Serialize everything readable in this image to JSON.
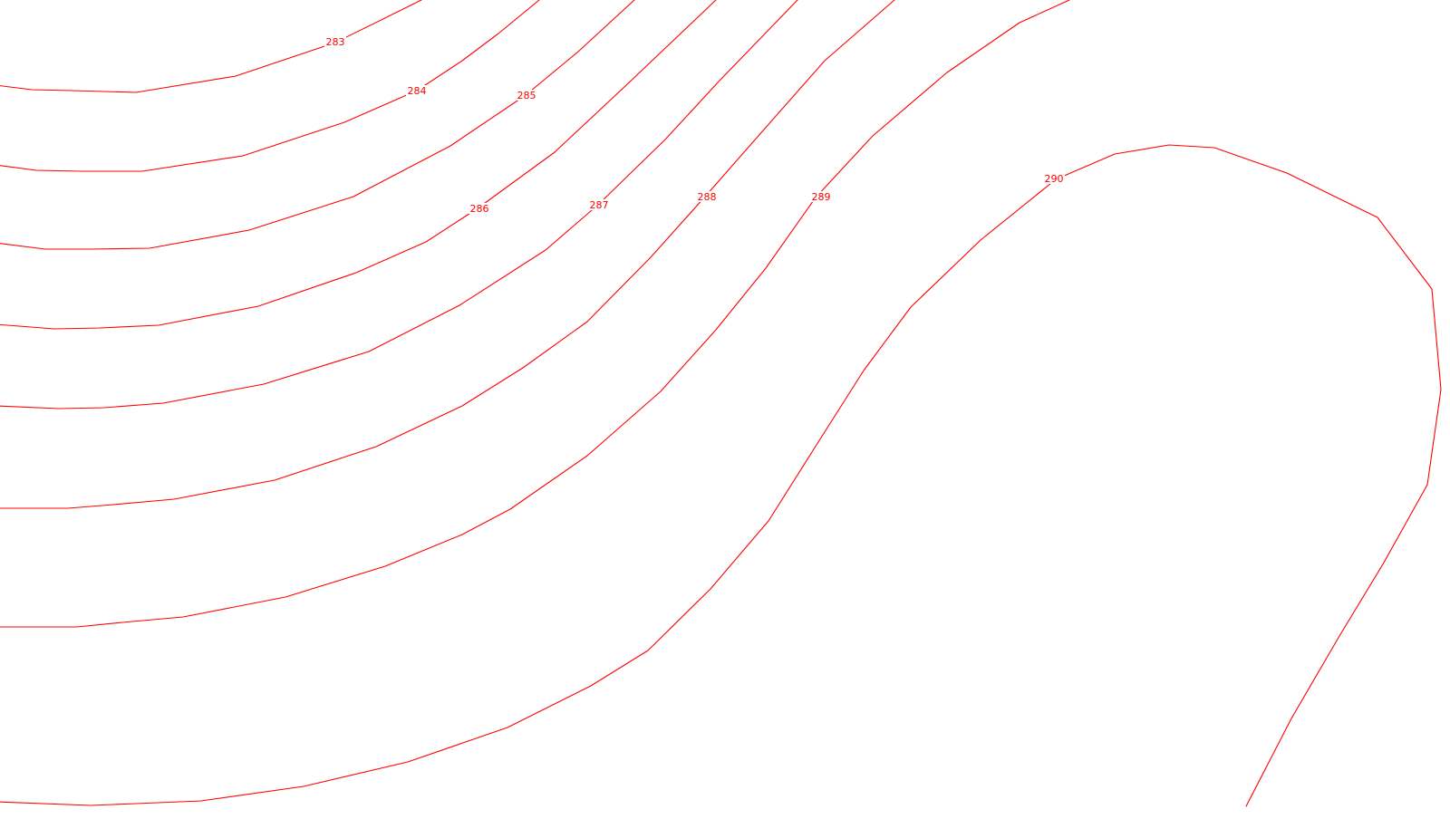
{
  "map": {
    "background_color": "#ffffff",
    "line_color": "#ff0000",
    "label_color": "#ff0000",
    "contours": [
      {
        "elevation": "283",
        "label": "283"
      },
      {
        "elevation": "284",
        "label": "284"
      },
      {
        "elevation": "285",
        "label": "285"
      },
      {
        "elevation": "286",
        "label": "286"
      },
      {
        "elevation": "287",
        "label": "287"
      },
      {
        "elevation": "288",
        "label": "288"
      },
      {
        "elevation": "289",
        "label": "289"
      },
      {
        "elevation": "290",
        "label": "290"
      }
    ]
  }
}
